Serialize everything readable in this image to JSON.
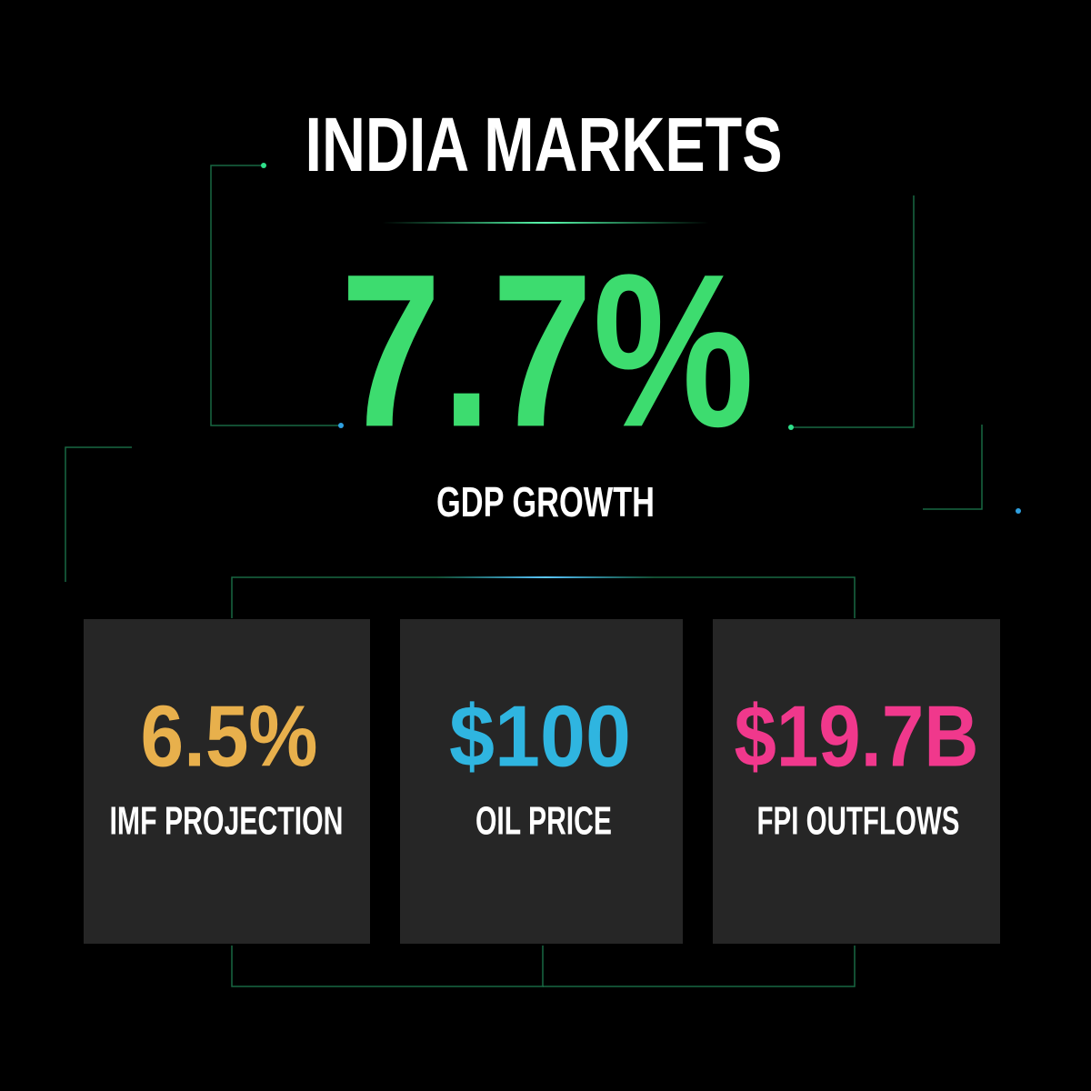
{
  "header": {
    "title": "INDIA MARKETS"
  },
  "headline": {
    "value": "7.7%",
    "label": "GDP GROWTH"
  },
  "cards": [
    {
      "value": "6.5%",
      "label": "IMF PROJECTION"
    },
    {
      "value": "$100",
      "label": "OIL PRICE"
    },
    {
      "value": "$19.7B",
      "label": "FPI OUTFLOWS"
    }
  ]
}
